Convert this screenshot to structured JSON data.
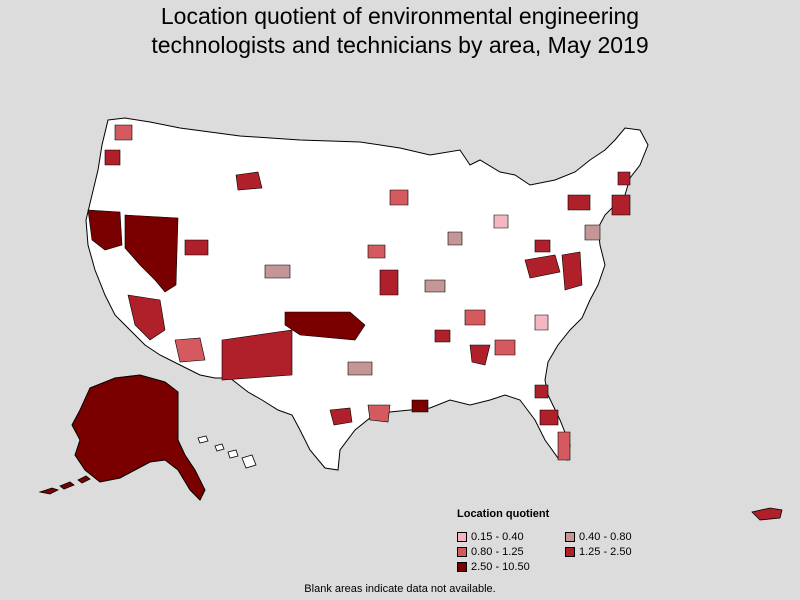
{
  "title_line1": "Location quotient of environmental engineering",
  "title_line2": "technologists and technicians by area, May 2019",
  "legend": {
    "title": "Location quotient",
    "items": [
      {
        "label": "0.15 - 0.40",
        "color": "#f4b6c0"
      },
      {
        "label": "0.40 - 0.80",
        "color": "#c49696"
      },
      {
        "label": "0.80 - 1.25",
        "color": "#d55a5f"
      },
      {
        "label": "1.25 - 2.50",
        "color": "#b0202a"
      },
      {
        "label": "2.50 - 10.50",
        "color": "#7a0000"
      }
    ]
  },
  "footnote": "Blank areas indicate data not available.",
  "colors": {
    "background": "#dcdcdc",
    "land": "#ffffff",
    "border": "#000000"
  }
}
